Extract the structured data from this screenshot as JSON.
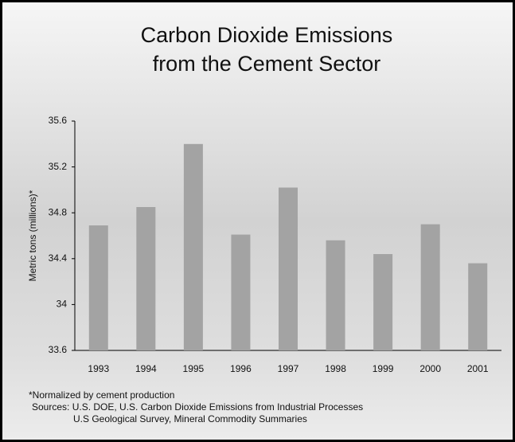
{
  "chart_data": {
    "type": "bar",
    "title": [
      "Carbon Dioxide Emissions",
      "from the Cement Sector"
    ],
    "y_label": "Metric tons (millions)*",
    "categories": [
      "1993",
      "1994",
      "1995",
      "1996",
      "1997",
      "1998",
      "1999",
      "2000",
      "2001"
    ],
    "values": [
      34.69,
      34.85,
      35.4,
      34.61,
      35.02,
      34.56,
      34.44,
      34.7,
      34.36
    ],
    "color": "#a3a3a3",
    "ylim": [
      33.6,
      35.6
    ],
    "yticks": [
      33.6,
      34,
      34.4,
      34.8,
      35.2,
      35.6
    ],
    "grid": false,
    "notes": [
      "*Normalized by cement production",
      "Sources: U.S. DOE, U.S. Carbon Dioxide Emissions from Industrial Processes",
      "U.S Geological Survey, Mineral Commodity Summaries"
    ]
  }
}
